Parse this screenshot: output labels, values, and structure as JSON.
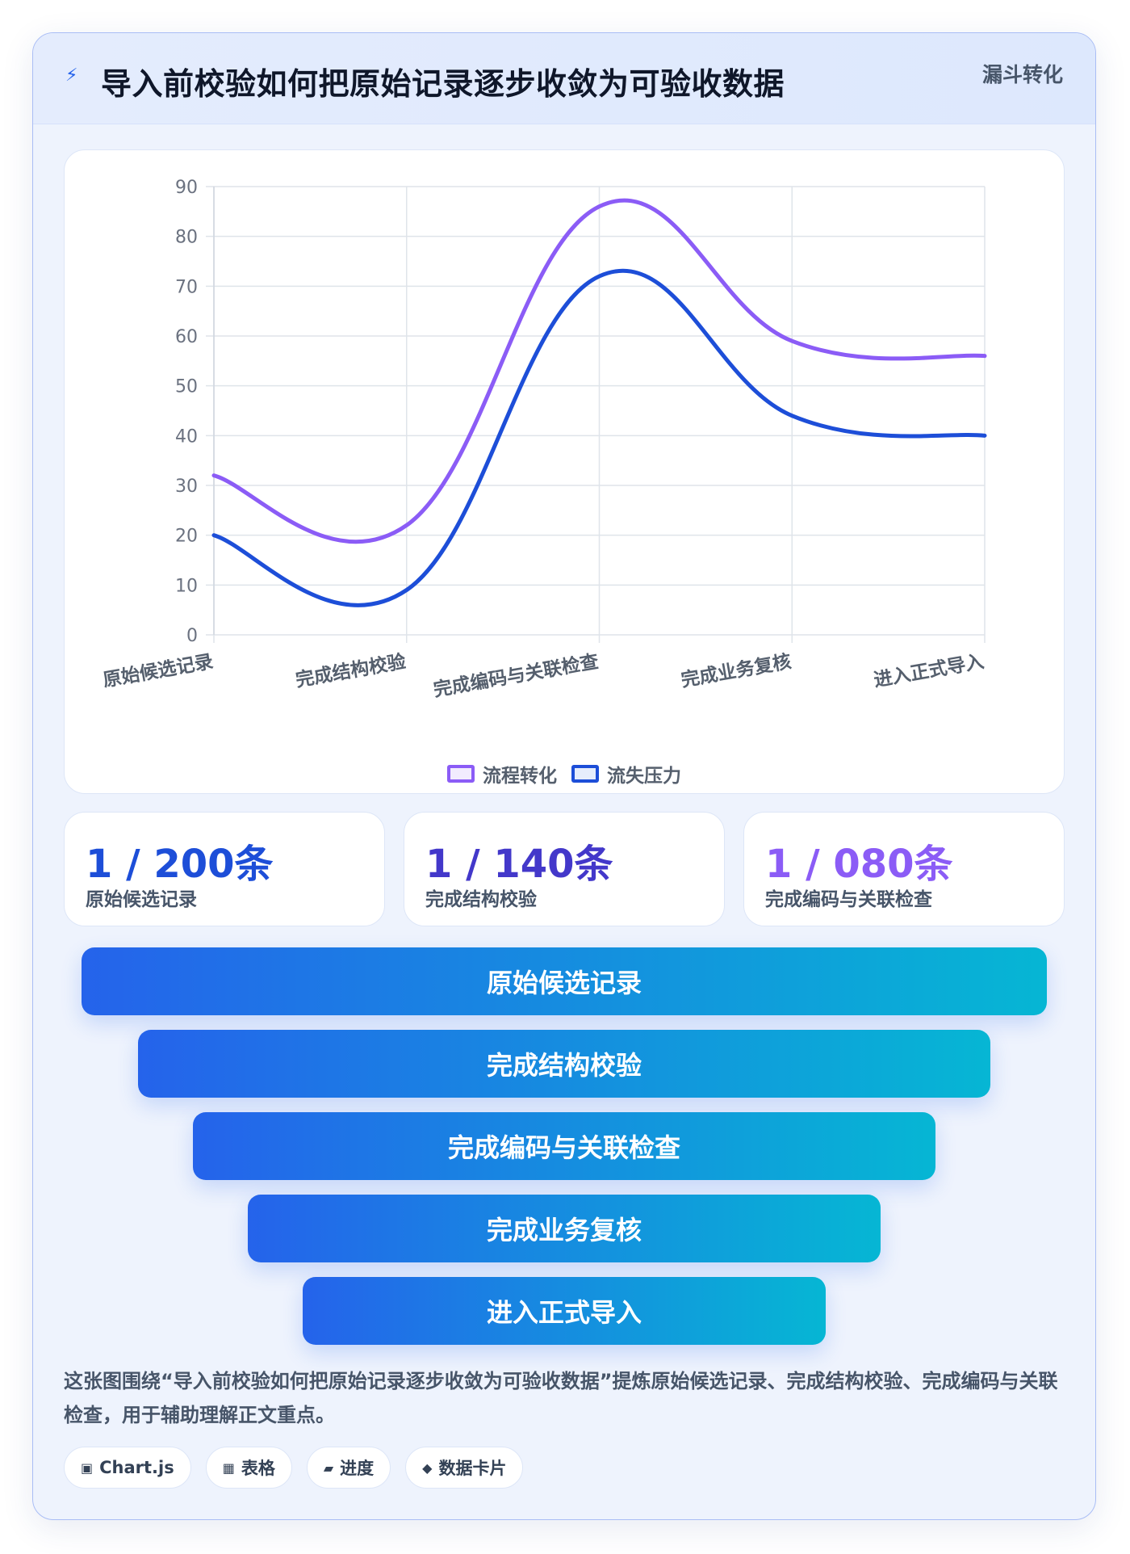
{
  "header": {
    "icon": "lightning-icon",
    "title": "导入前校验如何把原始记录逐步收敛为可验收数据",
    "tag": "漏斗转化"
  },
  "chart_data": {
    "type": "line",
    "categories": [
      "原始候选记录",
      "完成结构校验",
      "完成编码与关联检查",
      "完成业务复核",
      "进入正式导入"
    ],
    "series": [
      {
        "name": "流程转化",
        "values": [
          32,
          22,
          86,
          59,
          56
        ],
        "color": "#8b5cf6"
      },
      {
        "name": "流失压力",
        "values": [
          20,
          9,
          72,
          44,
          40
        ],
        "color": "#1d4ed8"
      }
    ],
    "ylim": [
      0,
      90
    ],
    "yticks": [
      0,
      10,
      20,
      30,
      40,
      50,
      60,
      70,
      80,
      90
    ],
    "grid": true,
    "legend": "bottom",
    "smooth": true
  },
  "stats": [
    {
      "value": "1 / 200条",
      "label": "原始候选记录",
      "color": "#1d4ed8"
    },
    {
      "value": "1 / 140条",
      "label": "完成结构校验",
      "color": "#4338ca"
    },
    {
      "value": "1 / 080条",
      "label": "完成编码与关联检查",
      "color": "#8b5cf6"
    }
  ],
  "funnel": [
    "原始候选记录",
    "完成结构校验",
    "完成编码与关联检查",
    "完成业务复核",
    "进入正式导入"
  ],
  "summary": "这张图围绕“导入前校验如何把原始记录逐步收敛为可验收数据”提炼原始候选记录、完成结构校验、完成编码与关联检查，用于辅助理解正文重点。",
  "chips": [
    {
      "icon": "▣",
      "label": "Chart.js"
    },
    {
      "icon": "▦",
      "label": "表格"
    },
    {
      "icon": "▰",
      "label": "进度"
    },
    {
      "icon": "◆",
      "label": "数据卡片"
    }
  ]
}
